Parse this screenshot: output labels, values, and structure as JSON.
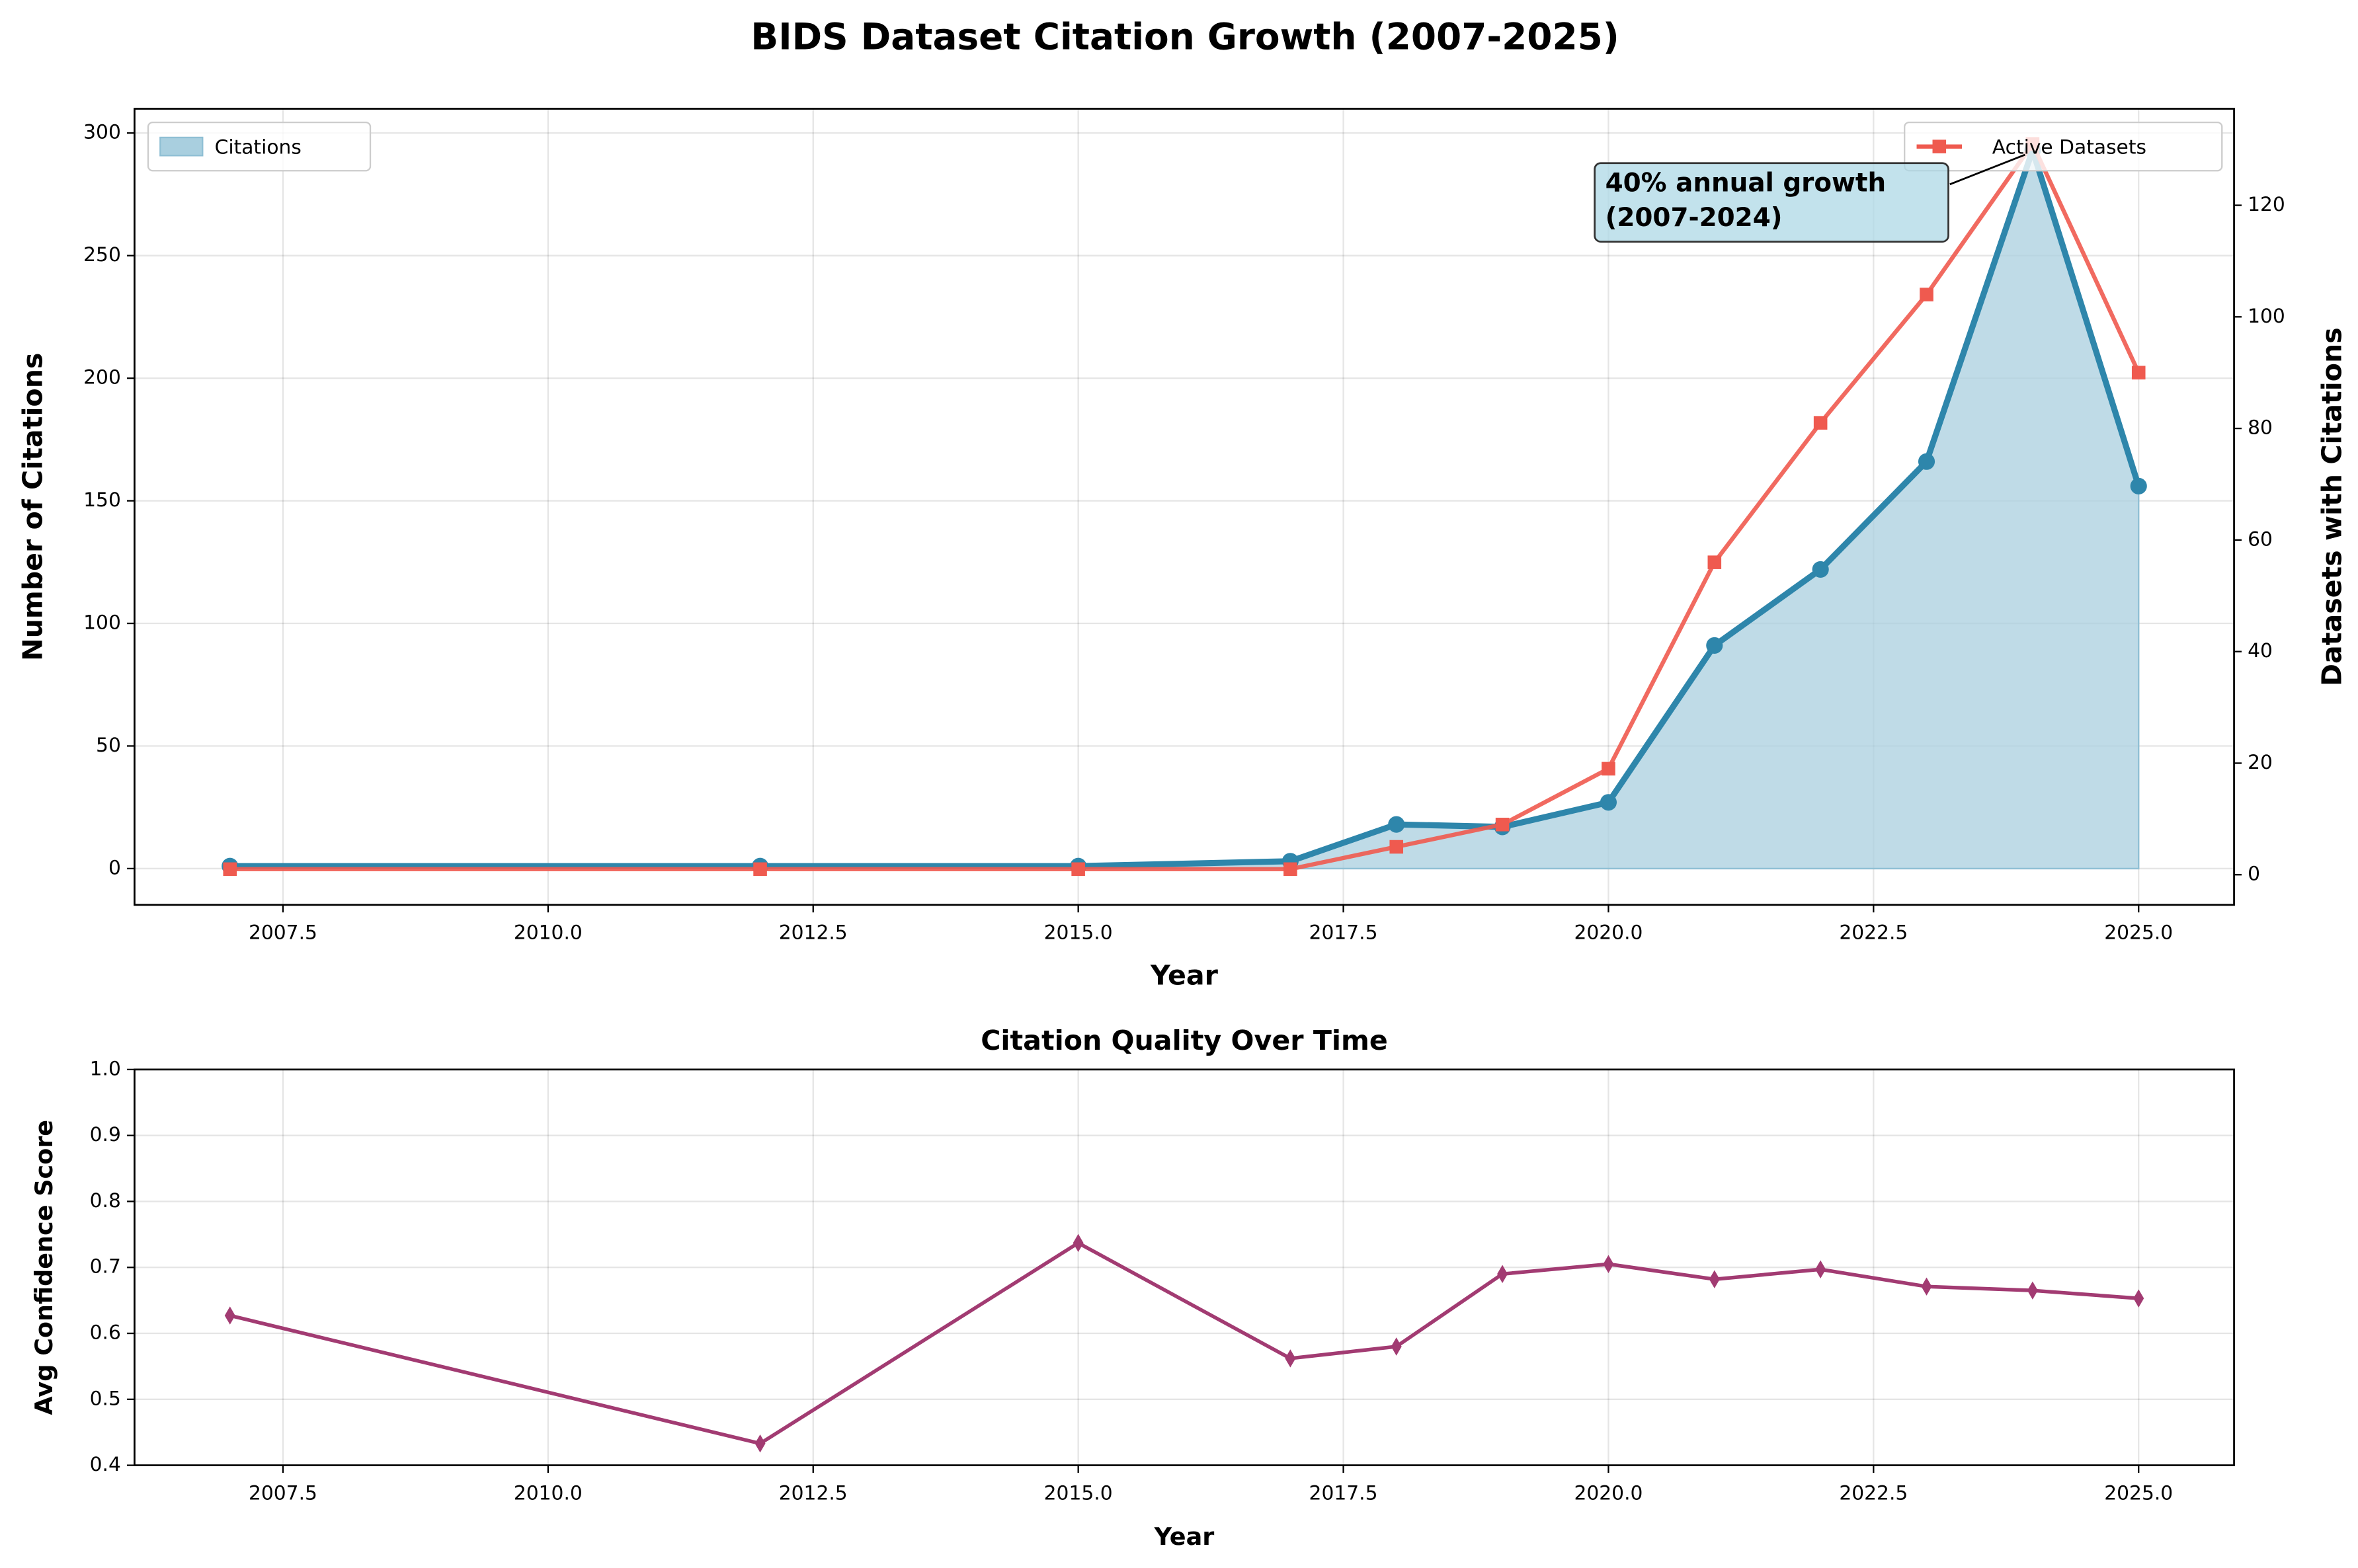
{
  "chart_data": [
    {
      "type": "line",
      "title": "BIDS Dataset Citation Growth (2007-2025)",
      "x_label": "Year",
      "y_label": "Number of Citations",
      "y2_label": "Datasets with Citations",
      "x": [
        2007,
        2012,
        2015,
        2017,
        2018,
        2019,
        2020,
        2021,
        2022,
        2023,
        2024,
        2025
      ],
      "series": [
        {
          "name": "Citations",
          "color": "#2e86ab",
          "values": [
            1,
            1,
            1,
            3,
            18,
            17,
            27,
            91,
            122,
            166,
            293,
            156
          ],
          "fill": true,
          "marker": "circle"
        },
        {
          "name": "Active Datasets",
          "color": "#ef5a4f",
          "axis": "y2",
          "values": [
            1,
            1,
            1,
            1,
            5,
            9,
            19,
            56,
            81,
            104,
            131,
            90
          ],
          "marker": "square"
        }
      ],
      "xlim": [
        2006.1,
        2025.9
      ],
      "xticks": [
        2007.5,
        {
          "value": 2010,
          "label": "2010.0"
        },
        2012.5,
        {
          "value": 2015,
          "label": "2015.0"
        },
        2017.5,
        {
          "value": 2020,
          "label": "2020.0"
        },
        2022.5,
        {
          "value": 2025,
          "label": "2025.0"
        }
      ],
      "ylim": [
        -14.8,
        309.9
      ],
      "yticks": [
        0,
        50,
        100,
        150,
        200,
        250,
        300
      ],
      "y2lim": [
        -5.4,
        137.3
      ],
      "y2ticks": [
        0,
        20,
        40,
        60,
        80,
        100,
        120
      ],
      "grid": true,
      "annotation": [
        "40% annual growth",
        "(2007-2024)"
      ]
    },
    {
      "type": "line",
      "title": "Citation Quality Over Time",
      "x_label": "Year",
      "y_label": "Avg Confidence Score",
      "x": [
        2007,
        2012,
        2015,
        2017,
        2018,
        2019,
        2020,
        2021,
        2022,
        2023,
        2024,
        2025
      ],
      "values": [
        0.627,
        0.433,
        0.737,
        0.562,
        0.58,
        0.69,
        0.705,
        0.682,
        0.697,
        0.671,
        0.665,
        0.653
      ],
      "color": "#a23b72",
      "marker": "diamond",
      "xlim": [
        2006.1,
        2025.9
      ],
      "xticks": [
        2007.5,
        {
          "value": 2010,
          "label": "2010.0"
        },
        2012.5,
        {
          "value": 2015,
          "label": "2015.0"
        },
        2017.5,
        {
          "value": 2020,
          "label": "2020.0"
        },
        2022.5,
        {
          "value": 2025,
          "label": "2025.0"
        }
      ],
      "ylim": [
        0.4,
        1.0
      ],
      "yticks": [
        0.4,
        0.5,
        0.6,
        0.7,
        0.8,
        0.9,
        {
          "value": 1.0,
          "label": "1.0"
        }
      ],
      "grid": true
    }
  ]
}
